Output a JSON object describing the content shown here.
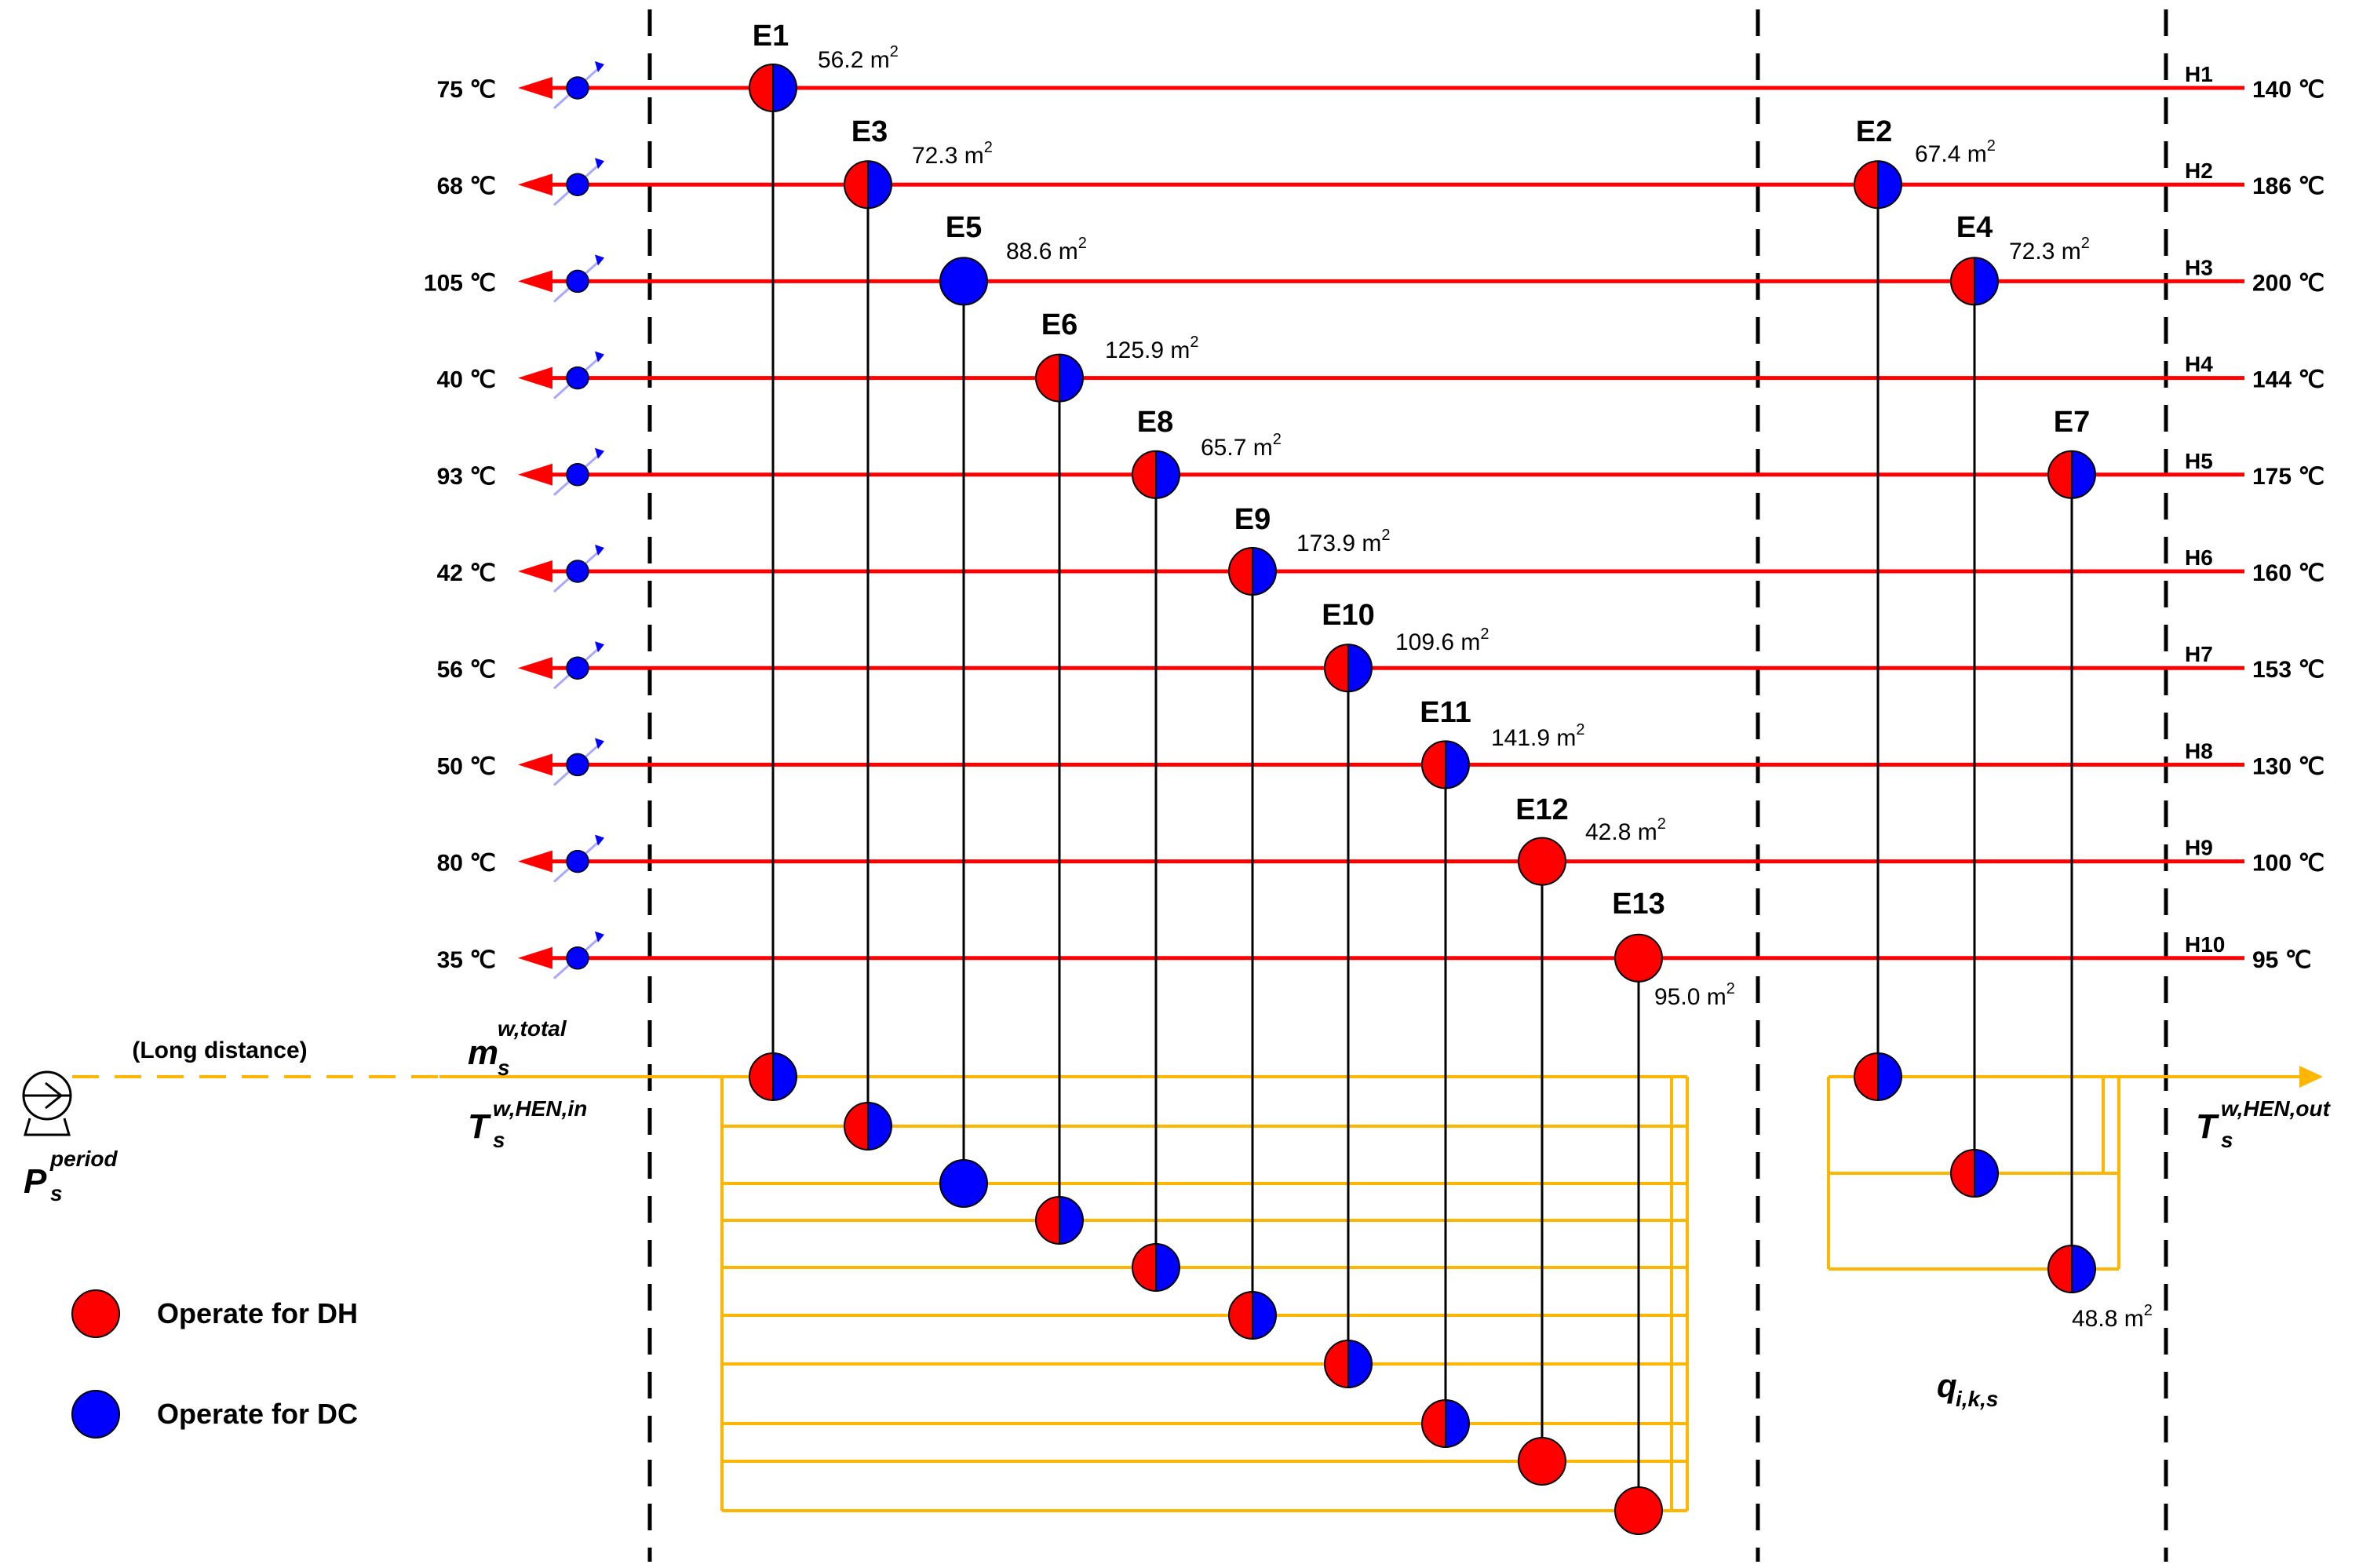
{
  "colors": {
    "hot_stream": "#ff0000",
    "water_line": "#ffb600",
    "dh": "#ff0000",
    "dc": "#0000ff",
    "divider": "#000000",
    "exchanger_link": "#000000"
  },
  "hot_streams": [
    {
      "id": "H1",
      "inlet": "140 ℃",
      "outlet": "75 ℃"
    },
    {
      "id": "H2",
      "inlet": "186 ℃",
      "outlet": "68 ℃"
    },
    {
      "id": "H3",
      "inlet": "200 ℃",
      "outlet": "105 ℃"
    },
    {
      "id": "H4",
      "inlet": "144 ℃",
      "outlet": "40 ℃"
    },
    {
      "id": "H5",
      "inlet": "175 ℃",
      "outlet": "93 ℃"
    },
    {
      "id": "H6",
      "inlet": "160 ℃",
      "outlet": "42 ℃"
    },
    {
      "id": "H7",
      "inlet": "153 ℃",
      "outlet": "56 ℃"
    },
    {
      "id": "H8",
      "inlet": "130 ℃",
      "outlet": "50 ℃"
    },
    {
      "id": "H9",
      "inlet": "100 ℃",
      "outlet": "80 ℃"
    },
    {
      "id": "H10",
      "inlet": "95 ℃",
      "outlet": "35 ℃"
    }
  ],
  "exchangers": [
    {
      "id": "E1",
      "stream": 0,
      "area": "56.2 m",
      "mode": "both"
    },
    {
      "id": "E2",
      "stream": 1,
      "area": "67.4 m",
      "mode": "both"
    },
    {
      "id": "E3",
      "stream": 1,
      "area": "72.3 m",
      "mode": "both"
    },
    {
      "id": "E4",
      "stream": 2,
      "area": "72.3 m",
      "mode": "both"
    },
    {
      "id": "E5",
      "stream": 2,
      "area": "88.6 m",
      "mode": "dc"
    },
    {
      "id": "E6",
      "stream": 3,
      "area": "125.9 m",
      "mode": "both"
    },
    {
      "id": "E7",
      "stream": 4,
      "area": "48.8 m",
      "mode": "both"
    },
    {
      "id": "E8",
      "stream": 4,
      "area": "65.7 m",
      "mode": "both"
    },
    {
      "id": "E9",
      "stream": 5,
      "area": "173.9 m",
      "mode": "both"
    },
    {
      "id": "E10",
      "stream": 6,
      "area": "109.6 m",
      "mode": "both"
    },
    {
      "id": "E11",
      "stream": 7,
      "area": "141.9 m",
      "mode": "both"
    },
    {
      "id": "E12",
      "stream": 8,
      "area": "42.8 m",
      "mode": "dh"
    },
    {
      "id": "E13",
      "stream": 9,
      "area": "95.0 m",
      "mode": "dh"
    }
  ],
  "labels": {
    "long_distance": "(Long distance)",
    "superscript_2": "2",
    "m_base": "m",
    "m_sub": "s",
    "m_sup": "w,total",
    "tin_base": "T",
    "tin_sub": "s",
    "tin_sup": "w,HEN,in",
    "tout_base": "T",
    "tout_sub": "s",
    "tout_sup": "w,HEN,out",
    "p_base": "P",
    "p_sub": "s",
    "p_sup": "period",
    "q_label": "q",
    "q_sub": "i,k,s"
  },
  "legend": [
    {
      "color": "#ff0000",
      "label": "Operate for DH"
    },
    {
      "color": "#0000ff",
      "label": "Operate for DC"
    }
  ]
}
